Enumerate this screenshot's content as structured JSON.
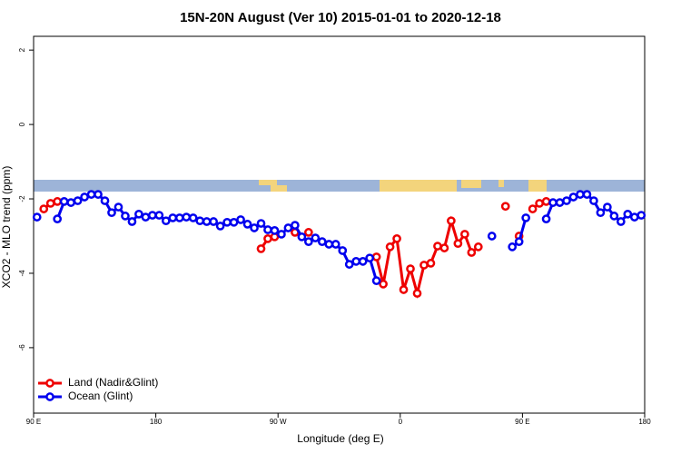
{
  "chart_data": {
    "type": "line",
    "title": "15N-20N August (Ver 10)   2015-01-01 to 2020-12-18",
    "x_label": "Longitude (deg E)",
    "y_label": "XCO2 - MLO trend (ppm)",
    "x": [
      92.5,
      97.5,
      102.5,
      107.5,
      112.5,
      117.5,
      122.5,
      127.5,
      132.5,
      137.5,
      142.5,
      147.5,
      152.5,
      157.5,
      162.5,
      167.5,
      172.5,
      177.5,
      182.5,
      187.5,
      192.5,
      197.5,
      202.5,
      207.5,
      212.5,
      217.5,
      222.5,
      227.5,
      232.5,
      237.5,
      242.5,
      247.5,
      252.5,
      257.5,
      262.5,
      267.5,
      272.5,
      277.5,
      282.5,
      287.5,
      292.5,
      297.5,
      302.5,
      307.5,
      312.5,
      317.5,
      322.5,
      327.5,
      332.5,
      337.5,
      342.5,
      347.5,
      352.5,
      357.5,
      362.5,
      367.5,
      372.5,
      377.5,
      382.5,
      387.5,
      392.5,
      397.5,
      402.5,
      407.5,
      412.5,
      417.5,
      422.5,
      427.5,
      432.5,
      437.5,
      442.5,
      447.5,
      452.5,
      457.5,
      462.5,
      467.5,
      472.5,
      477.5,
      482.5,
      487.5,
      492.5,
      497.5,
      502.5,
      507.5,
      512.5,
      517.5,
      522.5,
      527.5,
      532.5,
      537.5
    ],
    "series": [
      {
        "name": "Land (Nadir&Glint)",
        "color": "#ee0000",
        "values": [
          null,
          -2.27,
          -2.12,
          -2.07,
          null,
          null,
          null,
          null,
          null,
          null,
          null,
          null,
          null,
          null,
          null,
          null,
          null,
          null,
          null,
          null,
          null,
          null,
          null,
          null,
          null,
          null,
          null,
          null,
          null,
          null,
          null,
          null,
          null,
          -3.34,
          -3.07,
          -3.02,
          null,
          null,
          -2.9,
          null,
          -2.9,
          null,
          null,
          null,
          null,
          null,
          null,
          null,
          null,
          null,
          -3.56,
          -4.29,
          -3.29,
          -3.07,
          -4.44,
          -3.88,
          -4.54,
          -3.78,
          -3.73,
          -3.27,
          -3.32,
          -2.59,
          -3.2,
          -2.95,
          -3.44,
          -3.29,
          null,
          null,
          null,
          -2.2,
          null,
          -3.0,
          null,
          -2.27,
          -2.12,
          -2.07,
          null,
          null,
          null,
          null,
          null,
          null,
          null,
          null,
          null,
          null,
          null,
          null,
          null,
          null
        ]
      },
      {
        "name": "Ocean (Glint)",
        "color": "#0000ee",
        "values": [
          -2.49,
          null,
          null,
          -2.54,
          -2.07,
          -2.1,
          -2.05,
          -1.95,
          -1.88,
          -1.88,
          -2.05,
          -2.37,
          -2.22,
          -2.46,
          -2.61,
          -2.41,
          -2.49,
          -2.44,
          -2.44,
          -2.59,
          -2.51,
          -2.51,
          -2.49,
          -2.51,
          -2.59,
          -2.61,
          -2.61,
          -2.73,
          -2.63,
          -2.63,
          -2.56,
          -2.68,
          -2.78,
          -2.66,
          -2.83,
          -2.85,
          -2.95,
          -2.78,
          -2.71,
          -3.02,
          -3.15,
          -3.05,
          -3.15,
          -3.22,
          -3.22,
          -3.39,
          -3.76,
          -3.68,
          -3.68,
          -3.59,
          -4.2,
          null,
          null,
          null,
          null,
          null,
          null,
          null,
          null,
          null,
          null,
          null,
          null,
          null,
          null,
          null,
          null,
          -3.0,
          null,
          null,
          -3.29,
          -3.15,
          -2.51,
          null,
          null,
          -2.54,
          -2.1,
          -2.1,
          -2.05,
          -1.95,
          -1.88,
          -1.88,
          -2.05,
          -2.37,
          -2.22,
          -2.46,
          -2.61,
          -2.41,
          -2.49,
          -2.44
        ]
      }
    ],
    "xlim": [
      90,
      540
    ],
    "xticks": [
      {
        "value": 90,
        "label": "90 E"
      },
      180,
      {
        "value": 270,
        "label": "90 W"
      },
      {
        "value": 360,
        "label": "0"
      },
      {
        "value": 450,
        "label": "90 E"
      },
      {
        "value": 540,
        "label": "180"
      }
    ],
    "ylim": [
      -7.76,
      2.37
    ],
    "yticks": [
      -6,
      -4,
      -2,
      0,
      2
    ],
    "legend": "bottom-left"
  }
}
